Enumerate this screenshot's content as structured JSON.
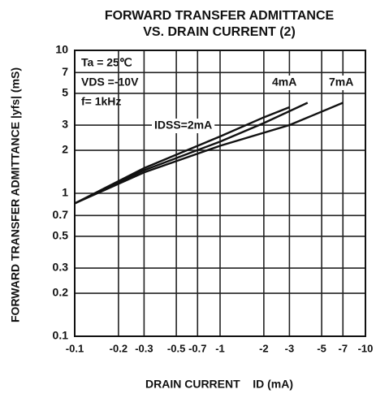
{
  "chart_data": {
    "type": "line",
    "title": "FORWARD TRANSFER ADMITTANCE",
    "subtitle": "VS. DRAIN CURRENT (2)",
    "y_label": "FORWARD TRANSFER ADMITTANCE   |yfs| (mS)",
    "x_label": "DRAIN CURRENT    ID (mA)",
    "annotations": [
      "Ta = 25℃",
      "VDS =-10V",
      "f= 1kHz"
    ],
    "xscale": "log",
    "yscale": "log",
    "grid": true,
    "xlim": [
      -0.1,
      -10
    ],
    "ylim": [
      0.1,
      10
    ],
    "xticks": [
      -0.1,
      -0.2,
      -0.3,
      -0.5,
      -0.7,
      -1,
      -2,
      -3,
      -5,
      -7,
      -10
    ],
    "yticks": [
      0.1,
      0.2,
      0.3,
      0.5,
      0.7,
      1,
      2,
      3,
      5,
      7,
      10
    ],
    "series": [
      {
        "name": "IDSS=2mA",
        "color": "#111111",
        "x": [
          -0.1,
          -0.3,
          -1,
          -2,
          -3
        ],
        "values": [
          0.85,
          1.5,
          2.5,
          3.4,
          4.0
        ]
      },
      {
        "name": "4mA",
        "color": "#111111",
        "x": [
          -0.1,
          -0.3,
          -1,
          -2,
          -4
        ],
        "values": [
          0.85,
          1.45,
          2.3,
          3.1,
          4.3
        ]
      },
      {
        "name": "7mA",
        "color": "#111111",
        "x": [
          -0.1,
          -0.3,
          -1,
          -3,
          -7
        ],
        "values": [
          0.85,
          1.4,
          2.15,
          3.0,
          4.3
        ]
      }
    ]
  }
}
